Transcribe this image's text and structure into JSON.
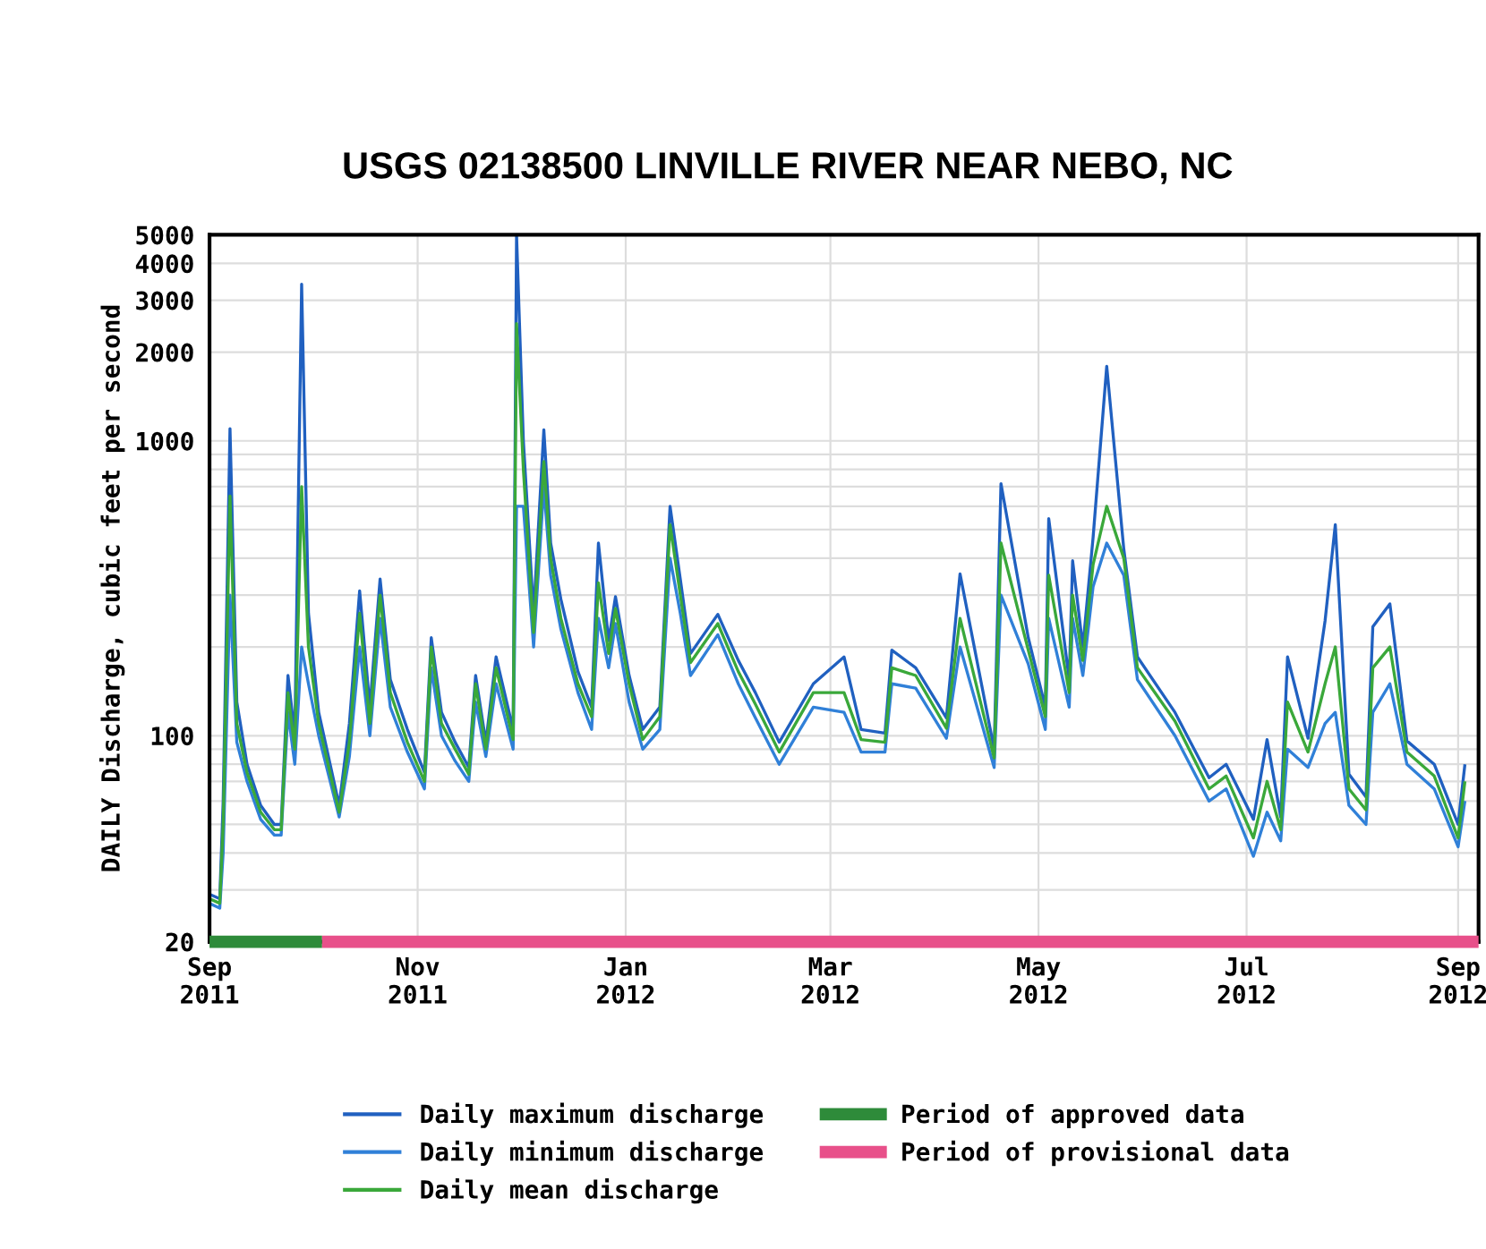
{
  "chart_data": {
    "type": "line",
    "title": "USGS 02138500 LINVILLE RIVER NEAR NEBO, NC",
    "ylabel": "DAILY Discharge, cubic feet per second",
    "x": [
      "2011-09-01",
      "2011-09-04",
      "2011-09-05",
      "2011-09-07",
      "2011-09-09",
      "2011-09-12",
      "2011-09-16",
      "2011-09-20",
      "2011-09-22",
      "2011-09-24",
      "2011-09-26",
      "2011-09-28",
      "2011-09-30",
      "2011-10-03",
      "2011-10-09",
      "2011-10-12",
      "2011-10-15",
      "2011-10-18",
      "2011-10-21",
      "2011-10-24",
      "2011-10-29",
      "2011-11-03",
      "2011-11-05",
      "2011-11-08",
      "2011-11-12",
      "2011-11-16",
      "2011-11-18",
      "2011-11-21",
      "2011-11-24",
      "2011-11-29",
      "2011-11-30",
      "2011-12-02",
      "2011-12-05",
      "2011-12-08",
      "2011-12-10",
      "2011-12-13",
      "2011-12-18",
      "2011-12-22",
      "2011-12-24",
      "2011-12-27",
      "2011-12-29",
      "2012-01-02",
      "2012-01-06",
      "2012-01-11",
      "2012-01-14",
      "2012-01-17",
      "2012-01-20",
      "2012-01-28",
      "2012-02-03",
      "2012-02-08",
      "2012-02-15",
      "2012-02-25",
      "2012-03-05",
      "2012-03-10",
      "2012-03-17",
      "2012-03-19",
      "2012-03-26",
      "2012-04-04",
      "2012-04-08",
      "2012-04-18",
      "2012-04-20",
      "2012-04-28",
      "2012-05-03",
      "2012-05-04",
      "2012-05-10",
      "2012-05-11",
      "2012-05-14",
      "2012-05-17",
      "2012-05-21",
      "2012-05-26",
      "2012-05-30",
      "2012-06-10",
      "2012-06-20",
      "2012-06-25",
      "2012-07-03",
      "2012-07-07",
      "2012-07-11",
      "2012-07-13",
      "2012-07-19",
      "2012-07-24",
      "2012-07-27",
      "2012-07-31",
      "2012-08-05",
      "2012-08-07",
      "2012-08-12",
      "2012-08-17",
      "2012-08-25",
      "2012-09-01",
      "2012-09-03"
    ],
    "series": [
      {
        "name": "Daily maximum discharge",
        "color": "#2060c0",
        "values": [
          29,
          28,
          60,
          1100,
          130,
          80,
          58,
          50,
          50,
          160,
          100,
          3400,
          260,
          120,
          58,
          110,
          310,
          125,
          340,
          155,
          105,
          75,
          215,
          120,
          95,
          78,
          160,
          95,
          185,
          105,
          5000,
          1000,
          260,
          1090,
          450,
          290,
          165,
          125,
          450,
          210,
          296,
          160,
          105,
          125,
          600,
          340,
          190,
          258,
          180,
          140,
          95,
          150,
          185,
          105,
          102,
          195,
          170,
          115,
          354,
          90,
          716,
          215,
          125,
          545,
          155,
          392,
          200,
          470,
          1790,
          430,
          185,
          120,
          72,
          80,
          52,
          97,
          53,
          185,
          98,
          245,
          520,
          74,
          62,
          234,
          280,
          96,
          80,
          50,
          80
        ]
      },
      {
        "name": "Daily minimum discharge",
        "color": "#3080d8",
        "values": [
          27,
          26,
          40,
          300,
          95,
          70,
          52,
          46,
          46,
          120,
          80,
          200,
          150,
          100,
          53,
          85,
          200,
          100,
          250,
          125,
          88,
          66,
          170,
          100,
          82,
          70,
          130,
          85,
          150,
          90,
          600,
          600,
          200,
          700,
          350,
          230,
          140,
          105,
          250,
          170,
          240,
          130,
          90,
          105,
          400,
          260,
          160,
          220,
          150,
          115,
          80,
          125,
          120,
          88,
          88,
          150,
          145,
          98,
          200,
          78,
          300,
          175,
          105,
          250,
          125,
          250,
          160,
          320,
          450,
          350,
          155,
          100,
          60,
          66,
          39,
          55,
          44,
          90,
          78,
          110,
          120,
          58,
          50,
          120,
          150,
          80,
          66,
          42,
          60
        ]
      },
      {
        "name": "Daily mean discharge",
        "color": "#3aa83a",
        "values": [
          28,
          27,
          50,
          650,
          110,
          75,
          55,
          48,
          48,
          140,
          90,
          700,
          200,
          110,
          55,
          95,
          260,
          110,
          300,
          140,
          95,
          70,
          200,
          110,
          90,
          74,
          150,
          90,
          170,
          97,
          2500,
          800,
          224,
          850,
          400,
          250,
          150,
          116,
          330,
          190,
          270,
          150,
          97,
          116,
          520,
          300,
          177,
          240,
          165,
          128,
          88,
          140,
          140,
          97,
          95,
          170,
          160,
          106,
          250,
          84,
          450,
          195,
          116,
          350,
          140,
          300,
          180,
          380,
          600,
          400,
          170,
          112,
          66,
          73,
          45,
          70,
          48,
          130,
          88,
          150,
          200,
          66,
          56,
          170,
          200,
          88,
          73,
          45,
          70
        ]
      },
      {
        "name": "Period of approved data",
        "color": "#2e8b3a",
        "x": [
          "2011-09-01",
          "2011-10-04"
        ],
        "values": [
          20,
          20
        ]
      },
      {
        "name": "Period of provisional data",
        "color": "#e8508a",
        "x": [
          "2011-10-04",
          "2012-09-07"
        ],
        "values": [
          20,
          20
        ]
      }
    ],
    "log": true,
    "xlim": [
      "2011-09-01",
      "2012-09-07"
    ],
    "xticks": [
      {
        "value": "2011-09-01",
        "label": "Sep\n2011"
      },
      {
        "value": "2011-11-01",
        "label": "Nov\n2011"
      },
      {
        "value": "2012-01-01",
        "label": "Jan\n2012"
      },
      {
        "value": "2012-03-01",
        "label": "Mar\n2012"
      },
      {
        "value": "2012-05-01",
        "label": "May\n2012"
      },
      {
        "value": "2012-07-01",
        "label": "Jul\n2012"
      },
      {
        "value": "2012-09-01",
        "label": "Sep\n2012"
      }
    ],
    "ylim": [
      20,
      5000
    ],
    "yticks": [
      20,
      {
        "value": 30,
        "label": null
      },
      {
        "value": 40,
        "label": null
      },
      {
        "value": 50,
        "label": null
      },
      {
        "value": 60,
        "label": null
      },
      {
        "value": 70,
        "label": null
      },
      {
        "value": 80,
        "label": null
      },
      {
        "value": 90,
        "label": null
      },
      100,
      {
        "value": 200,
        "label": null
      },
      {
        "value": 300,
        "label": null
      },
      {
        "value": 400,
        "label": null
      },
      {
        "value": 500,
        "label": null
      },
      {
        "value": 600,
        "label": null
      },
      {
        "value": 700,
        "label": null
      },
      {
        "value": 800,
        "label": null
      },
      {
        "value": 900,
        "label": null
      },
      1000,
      2000,
      3000,
      4000,
      5000
    ],
    "grid": true,
    "legend": "bottom"
  }
}
